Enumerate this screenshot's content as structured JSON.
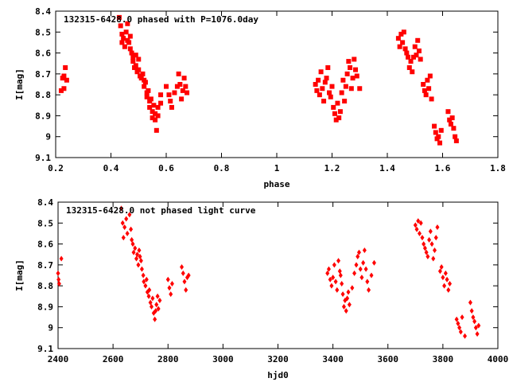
{
  "chart_data": [
    {
      "type": "scatter",
      "title": "132315-6428.0 phased with P=1076.0day",
      "xlabel": "phase",
      "ylabel": "I[mag]",
      "xlim": [
        0.2,
        1.8
      ],
      "ylim": [
        9.1,
        8.4
      ],
      "y_inverted": true,
      "xticks": [
        "0.2",
        "0.4",
        "0.6",
        "0.8",
        "1",
        "1.2",
        "1.4",
        "1.6",
        "1.8"
      ],
      "yticks": [
        "8.4",
        "8.5",
        "8.6",
        "8.7",
        "8.8",
        "8.9",
        "9",
        "9.1"
      ],
      "grid": false,
      "marker": "filled-square",
      "color": "#ff0000",
      "series": [
        {
          "x": [
            0.22,
            0.225,
            0.23,
            0.23,
            0.235,
            0.24,
            0.43,
            0.435,
            0.44,
            0.44,
            0.445,
            0.45,
            0.455,
            0.46,
            0.46,
            0.465,
            0.47,
            0.47,
            0.475,
            0.48,
            0.48,
            0.485,
            0.49,
            0.49,
            0.495,
            0.5,
            0.5,
            0.505,
            0.51,
            0.515,
            0.52,
            0.52,
            0.525,
            0.53,
            0.53,
            0.535,
            0.54,
            0.54,
            0.545,
            0.55,
            0.55,
            0.555,
            0.56,
            0.56,
            0.565,
            0.57,
            0.57,
            0.58,
            0.58,
            0.6,
            0.61,
            0.615,
            0.62,
            0.63,
            0.64,
            0.645,
            0.65,
            0.655,
            0.66,
            0.665,
            0.67,
            0.675,
            1.14,
            1.145,
            1.15,
            1.155,
            1.16,
            1.165,
            1.17,
            1.175,
            1.18,
            1.185,
            1.19,
            1.195,
            1.2,
            1.205,
            1.21,
            1.215,
            1.22,
            1.225,
            1.23,
            1.235,
            1.24,
            1.245,
            1.25,
            1.255,
            1.26,
            1.265,
            1.27,
            1.275,
            1.28,
            1.285,
            1.29,
            1.3,
            1.44,
            1.445,
            1.45,
            1.455,
            1.46,
            1.465,
            1.47,
            1.475,
            1.48,
            1.485,
            1.49,
            1.495,
            1.5,
            1.505,
            1.51,
            1.515,
            1.52,
            1.53,
            1.535,
            1.54,
            1.545,
            1.55,
            1.555,
            1.56,
            1.57,
            1.575,
            1.58,
            1.585,
            1.59,
            1.595,
            1.62,
            1.625,
            1.63,
            1.635,
            1.64,
            1.645,
            1.65
          ],
          "y": [
            8.78,
            8.72,
            8.77,
            8.71,
            8.67,
            8.73,
            8.43,
            8.47,
            8.51,
            8.55,
            8.53,
            8.57,
            8.5,
            8.46,
            8.54,
            8.55,
            8.58,
            8.52,
            8.6,
            8.62,
            8.64,
            8.67,
            8.61,
            8.66,
            8.69,
            8.63,
            8.68,
            8.71,
            8.72,
            8.7,
            8.73,
            8.76,
            8.74,
            8.79,
            8.81,
            8.78,
            8.83,
            8.86,
            8.82,
            8.88,
            8.91,
            8.85,
            8.89,
            8.92,
            8.97,
            8.9,
            8.86,
            8.8,
            8.84,
            8.76,
            8.8,
            8.83,
            8.86,
            8.79,
            8.76,
            8.7,
            8.75,
            8.82,
            8.78,
            8.72,
            8.76,
            8.79,
            8.75,
            8.78,
            8.73,
            8.8,
            8.69,
            8.77,
            8.83,
            8.74,
            8.72,
            8.67,
            8.79,
            8.81,
            8.76,
            8.86,
            8.89,
            8.92,
            8.84,
            8.91,
            8.88,
            8.79,
            8.73,
            8.83,
            8.76,
            8.7,
            8.64,
            8.67,
            8.77,
            8.72,
            8.63,
            8.68,
            8.71,
            8.77,
            8.53,
            8.57,
            8.51,
            8.55,
            8.5,
            8.58,
            8.6,
            8.62,
            8.67,
            8.64,
            8.69,
            8.62,
            8.57,
            8.61,
            8.54,
            8.59,
            8.63,
            8.75,
            8.78,
            8.8,
            8.73,
            8.77,
            8.71,
            8.82,
            8.95,
            8.98,
            9.01,
            9.0,
            9.03,
            8.97,
            8.88,
            8.92,
            8.94,
            8.91,
            8.96,
            9.0,
            9.02
          ]
        }
      ]
    },
    {
      "type": "scatter",
      "title": "132315-6428.0 not phased light curve",
      "xlabel": "hjd0",
      "ylabel": "I[mag]",
      "xlim": [
        2400,
        4000
      ],
      "ylim": [
        9.1,
        8.4
      ],
      "y_inverted": true,
      "xticks": [
        "2400",
        "2600",
        "2800",
        "3000",
        "3200",
        "3400",
        "3600",
        "3800",
        "4000"
      ],
      "yticks": [
        "8.4",
        "8.5",
        "8.6",
        "8.7",
        "8.8",
        "8.9",
        "9",
        "9.1"
      ],
      "grid": false,
      "marker": "diamond",
      "color": "#ff0000",
      "series": [
        {
          "x": [
            2400,
            2402,
            2404,
            2412,
            2630,
            2635,
            2638,
            2642,
            2648,
            2652,
            2660,
            2665,
            2668,
            2672,
            2675,
            2680,
            2685,
            2688,
            2692,
            2695,
            2698,
            2702,
            2705,
            2710,
            2712,
            2718,
            2722,
            2725,
            2730,
            2732,
            2736,
            2740,
            2744,
            2748,
            2752,
            2755,
            2758,
            2762,
            2765,
            2770,
            2800,
            2805,
            2810,
            2815,
            2850,
            2855,
            2860,
            2865,
            2870,
            2875,
            3380,
            3385,
            3390,
            3395,
            3400,
            3405,
            3410,
            3415,
            3420,
            3425,
            3428,
            3432,
            3436,
            3440,
            3444,
            3448,
            3452,
            3456,
            3460,
            3470,
            3478,
            3485,
            3490,
            3495,
            3500,
            3505,
            3510,
            3515,
            3520,
            3525,
            3530,
            3540,
            3550,
            3700,
            3705,
            3710,
            3715,
            3720,
            3725,
            3730,
            3735,
            3740,
            3745,
            3750,
            3755,
            3760,
            3765,
            3770,
            3775,
            3780,
            3790,
            3795,
            3800,
            3805,
            3810,
            3815,
            3820,
            3825,
            3850,
            3855,
            3860,
            3865,
            3870,
            3880,
            3900,
            3905,
            3910,
            3915,
            3920,
            3925,
            3930
          ],
          "y": [
            8.74,
            8.77,
            8.79,
            8.67,
            8.43,
            8.5,
            8.57,
            8.52,
            8.48,
            8.55,
            8.46,
            8.53,
            8.58,
            8.6,
            8.64,
            8.62,
            8.67,
            8.65,
            8.7,
            8.63,
            8.66,
            8.68,
            8.72,
            8.75,
            8.78,
            8.8,
            8.77,
            8.83,
            8.85,
            8.82,
            8.88,
            8.9,
            8.86,
            8.93,
            8.96,
            8.92,
            8.89,
            8.85,
            8.91,
            8.87,
            8.77,
            8.81,
            8.84,
            8.79,
            8.71,
            8.74,
            8.78,
            8.82,
            8.76,
            8.75,
            8.74,
            8.72,
            8.77,
            8.8,
            8.76,
            8.7,
            8.78,
            8.82,
            8.68,
            8.73,
            8.75,
            8.79,
            8.84,
            8.9,
            8.87,
            8.92,
            8.86,
            8.83,
            8.89,
            8.81,
            8.74,
            8.7,
            8.66,
            8.64,
            8.72,
            8.76,
            8.69,
            8.63,
            8.72,
            8.78,
            8.82,
            8.75,
            8.69,
            8.51,
            8.53,
            8.49,
            8.55,
            8.5,
            8.57,
            8.6,
            8.62,
            8.64,
            8.66,
            8.58,
            8.54,
            8.6,
            8.67,
            8.63,
            8.57,
            8.52,
            8.73,
            8.71,
            8.76,
            8.8,
            8.74,
            8.77,
            8.82,
            8.79,
            8.96,
            8.98,
            9.0,
            9.02,
            8.95,
            9.04,
            8.88,
            8.92,
            8.95,
            8.97,
            9.0,
            9.03,
            8.99
          ]
        }
      ]
    }
  ]
}
